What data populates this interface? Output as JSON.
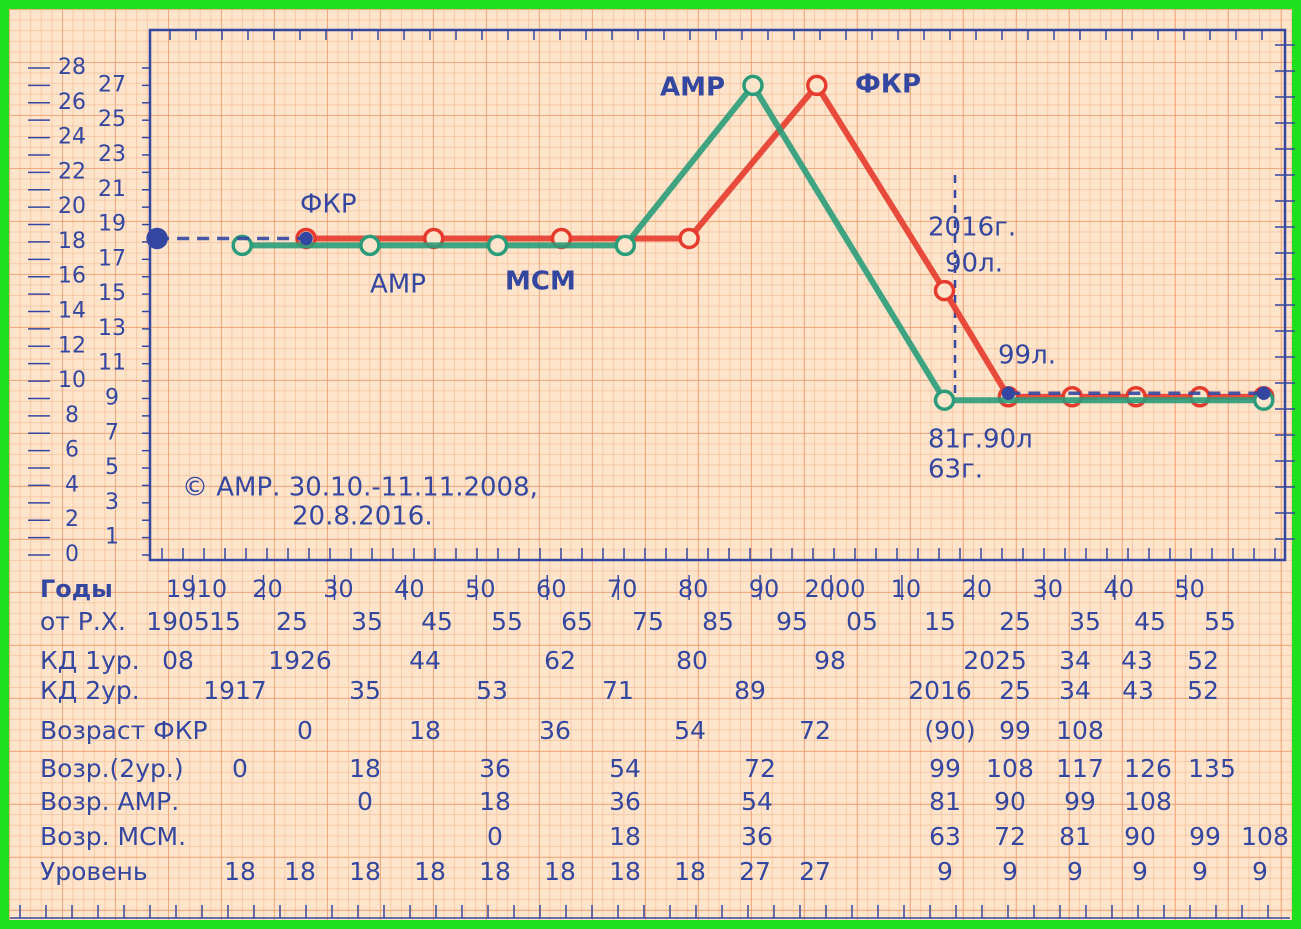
{
  "chart_data": {
    "type": "line",
    "x_label": "Годы",
    "xlim": [
      1904,
      2064
    ],
    "xticks": [
      1910,
      {
        "value": 1920,
        "label": "20"
      },
      {
        "value": 1930,
        "label": "30"
      },
      {
        "value": 1940,
        "label": "40"
      },
      {
        "value": 1950,
        "label": "50"
      },
      {
        "value": 1960,
        "label": "60"
      },
      {
        "value": 1970,
        "label": "70"
      },
      {
        "value": 1980,
        "label": "80"
      },
      {
        "value": 1990,
        "label": "90"
      },
      2000,
      {
        "value": 2010,
        "label": "10"
      },
      {
        "value": 2020,
        "label": "20"
      },
      {
        "value": 2030,
        "label": "30"
      },
      {
        "value": 2040,
        "label": "40"
      },
      {
        "value": 2050,
        "label": "50"
      }
    ],
    "ylim": [
      0,
      28
    ],
    "yticks": [
      0,
      1,
      2,
      3,
      4,
      5,
      6,
      7,
      8,
      9,
      10,
      11,
      12,
      13,
      14,
      15,
      16,
      17,
      18,
      19,
      20,
      21,
      22,
      23,
      24,
      25,
      26,
      27,
      28
    ],
    "series": [
      {
        "name": "ФКР",
        "color": "#e63a2c",
        "dashed": false,
        "x": [
          1926,
          1944,
          1962,
          1980,
          1998,
          2016,
          2025,
          2034,
          2043,
          2052,
          2061
        ],
        "values": [
          18.2,
          18.2,
          18.2,
          18.2,
          27,
          15.2,
          9.1,
          9.1,
          9.1,
          9.1,
          9.1
        ]
      },
      {
        "name": "АМР",
        "color": "#2a9c7a",
        "dashed": false,
        "x": [
          1917,
          1935,
          1953,
          1971,
          1989,
          2016,
          2061
        ],
        "values": [
          17.8,
          17.8,
          17.8,
          17.8,
          27,
          8.9,
          8.9
        ]
      },
      {
        "name": "МСМ",
        "color": "#3447a0",
        "dashed": true,
        "x": [
          1905,
          1926,
          2016,
          2025,
          2061
        ],
        "values": [
          18.2,
          18.2,
          null,
          9.3,
          9.3
        ]
      }
    ],
    "annotations": [
      {
        "text": "ФКР",
        "color": "#3447a0"
      },
      {
        "text": "АМР",
        "color": "#2a9c7a"
      },
      {
        "text": "2016г.",
        "color": "#3447a0"
      },
      {
        "text": "90л.",
        "color": "#3447a0"
      },
      {
        "text": "99л.",
        "color": "#3447a0"
      },
      {
        "text": "81г.90л",
        "color": "#2a9c7a"
      },
      {
        "text": "63г.",
        "color": "#3447a0"
      },
      {
        "text": "© АМР. 30.10.-11.11.2008,",
        "color": "#3447a0"
      },
      {
        "text": "20.8.2016.",
        "color": "#3447a0"
      }
    ]
  },
  "table": {
    "level_colors": [
      "#2a9c7a",
      "#e63a2c"
    ],
    "rows": [
      {
        "label": "от Р.Х.",
        "cells": [
          "1905",
          "15",
          "25",
          "35",
          "45",
          "55",
          "65",
          "75",
          "85",
          "95",
          "05",
          "15",
          "25",
          "35",
          "45",
          "55"
        ]
      },
      {
        "label": "КД 1ур.",
        "cells": [
          "08",
          "1926",
          "44",
          "62",
          "80",
          "98",
          "2025",
          "34",
          "43",
          "52"
        ]
      },
      {
        "label": "КД 2ур.",
        "cells": [
          "1917",
          "35",
          "53",
          "71",
          "89",
          "2016",
          "25",
          "34",
          "43",
          "52"
        ]
      },
      {
        "label": "Возраст ФКР",
        "cells": [
          "0",
          "18",
          "36",
          "54",
          "72",
          "(90)",
          "99",
          "108"
        ]
      },
      {
        "label": "Возр.(2ур.)",
        "cells": [
          "0",
          "18",
          "36",
          "54",
          "72",
          "99",
          "108",
          "117",
          "126",
          "135"
        ]
      },
      {
        "label": "Возр. АМР.",
        "cells": [
          "0",
          "18",
          "36",
          "54",
          "81",
          "90",
          "99",
          "108"
        ]
      },
      {
        "label": "Возр. МСМ.",
        "cells": [
          "0",
          "18",
          "36",
          "63",
          "72",
          "81",
          "90",
          "99",
          "108"
        ]
      },
      {
        "label": "Уровень",
        "cells": [
          "18",
          "18",
          "18",
          "18",
          "18",
          "18",
          "18",
          "18",
          "27",
          "27",
          "9",
          "9",
          "9",
          "9",
          "9",
          "9"
        ]
      }
    ]
  }
}
